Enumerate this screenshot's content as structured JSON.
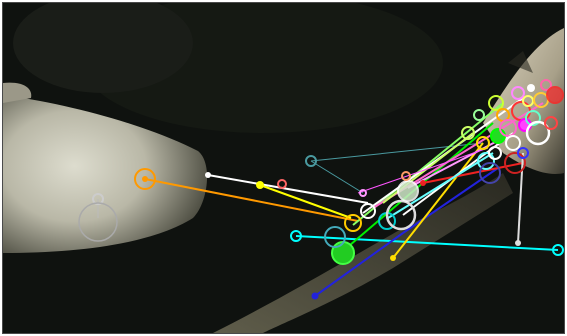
{
  "image": {
    "description_colors": {
      "background": "#101310",
      "bright_limb": "#d8d8c8",
      "rock": "#c9c0a8"
    },
    "track_colors": [
      "#ffffff",
      "#ff9900",
      "#ffff00",
      "#00ffff",
      "#00ff00",
      "#ff00ff",
      "#ff3333",
      "#3333ff",
      "#88ff88",
      "#ff88cc",
      "#66ffcc",
      "#ffcc66"
    ]
  }
}
